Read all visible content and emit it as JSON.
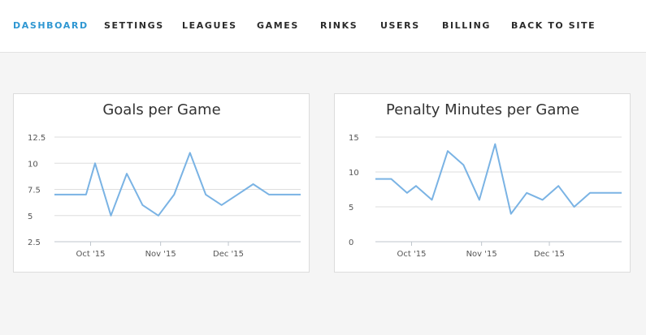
{
  "nav": {
    "items": [
      {
        "label": "DASHBOARD",
        "name": "nav-dashboard",
        "active": true
      },
      {
        "label": "SETTINGS",
        "name": "nav-settings",
        "active": false
      },
      {
        "label": "LEAGUES",
        "name": "nav-leagues",
        "active": false
      },
      {
        "label": "GAMES",
        "name": "nav-games",
        "active": false
      },
      {
        "label": "RINKS",
        "name": "nav-rinks",
        "active": false
      },
      {
        "label": "USERS",
        "name": "nav-users",
        "active": false
      },
      {
        "label": "BILLING",
        "name": "nav-billing",
        "active": false
      },
      {
        "label": "BACK TO SITE",
        "name": "nav-back-to-site",
        "active": false
      }
    ],
    "active_color": "#2f97d2"
  },
  "line_color": "#7ab3e4",
  "chart_data": [
    {
      "type": "line",
      "title": "Goals per Game",
      "x": [
        "2015-09-15",
        "2015-09-22",
        "2015-09-29",
        "2015-10-03",
        "2015-10-10",
        "2015-10-17",
        "2015-10-24",
        "2015-10-31",
        "2015-11-07",
        "2015-11-14",
        "2015-11-21",
        "2015-11-28",
        "2015-12-05",
        "2015-12-12",
        "2015-12-19",
        "2015-12-26",
        "2016-01-02"
      ],
      "y": [
        7,
        7,
        7,
        10,
        5,
        9,
        6,
        5,
        7,
        11,
        7,
        6,
        7,
        8,
        7,
        7,
        7
      ],
      "x_ticks": [
        "Oct '15",
        "Nov '15",
        "Dec '15"
      ],
      "y_ticks": [
        "12.5",
        "10",
        "7.5",
        "5",
        "2.5"
      ],
      "ylim": [
        2.5,
        12.5
      ],
      "grid": true
    },
    {
      "type": "line",
      "title": "Penalty Minutes per Game",
      "x": [
        "2015-09-15",
        "2015-09-22",
        "2015-09-29",
        "2015-10-03",
        "2015-10-10",
        "2015-10-17",
        "2015-10-24",
        "2015-10-31",
        "2015-11-07",
        "2015-11-14",
        "2015-11-21",
        "2015-11-28",
        "2015-12-05",
        "2015-12-12",
        "2015-12-19",
        "2015-12-26",
        "2016-01-02"
      ],
      "y": [
        9,
        9,
        7,
        8,
        6,
        13,
        11,
        6,
        14,
        4,
        7,
        6,
        8,
        5,
        7,
        7,
        7
      ],
      "x_ticks": [
        "Oct '15",
        "Nov '15",
        "Dec '15"
      ],
      "y_ticks": [
        "15",
        "10",
        "5",
        "0"
      ],
      "ylim": [
        0,
        15
      ],
      "grid": true
    }
  ]
}
